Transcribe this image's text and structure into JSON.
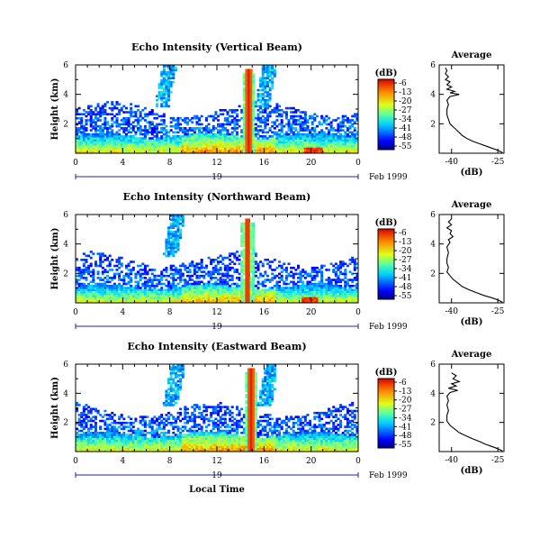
{
  "chart_data": [
    {
      "type": "heatmap",
      "title": "Echo Intensity (Vertical Beam)",
      "ylabel": "Height (km)",
      "xlabel": "",
      "x_ticks": [
        "0",
        "4",
        "8",
        "12",
        "16",
        "20",
        "0"
      ],
      "xlim": [
        0,
        24
      ],
      "y_ticks": [
        "6",
        "4",
        "2"
      ],
      "ylim": [
        0,
        6
      ],
      "date_label": "19",
      "date_suffix": "Feb 1999",
      "colorbar": {
        "unit": "(dB)",
        "ticks": [
          "-6",
          "-13",
          "-20",
          "-27",
          "-34",
          "-41",
          "-48",
          "-55"
        ],
        "range": [
          -55,
          -6
        ]
      },
      "features": {
        "surface_top_km": 1.2,
        "upper_layer_km": [
          1.8,
          3.0
        ],
        "plume_hour": 14.7,
        "aloft_echo_hours": [
          [
            6.5,
            8.5
          ],
          [
            15,
            17
          ]
        ],
        "aloft_echo_top_km": 6.0,
        "hot_hour": 20.2
      },
      "average": {
        "title": "Average",
        "xlabel": "(dB)",
        "x_ticks": [
          "-40",
          "-25"
        ],
        "xlim": [
          -44,
          -23
        ],
        "y_ticks": [
          "6",
          "4",
          "2"
        ],
        "ylim": [
          0,
          6
        ],
        "profile": [
          [
            -23.5,
            0.05
          ],
          [
            -25,
            0.2
          ],
          [
            -27,
            0.35
          ],
          [
            -29,
            0.5
          ],
          [
            -31,
            0.65
          ],
          [
            -33,
            0.8
          ],
          [
            -35,
            1.0
          ],
          [
            -36.5,
            1.2
          ],
          [
            -37.5,
            1.4
          ],
          [
            -38.5,
            1.6
          ],
          [
            -39.5,
            1.8
          ],
          [
            -40.5,
            2.0
          ],
          [
            -41,
            2.3
          ],
          [
            -41.5,
            2.6
          ],
          [
            -41.5,
            3.0
          ],
          [
            -41,
            3.3
          ],
          [
            -41.5,
            3.6
          ],
          [
            -40.5,
            3.85
          ],
          [
            -37.5,
            4.0
          ],
          [
            -40.5,
            4.1
          ],
          [
            -39,
            4.2
          ],
          [
            -41.5,
            4.35
          ],
          [
            -40,
            4.5
          ],
          [
            -41.5,
            4.65
          ],
          [
            -40.5,
            4.85
          ],
          [
            -42,
            5.0
          ],
          [
            -41,
            5.2
          ],
          [
            -42,
            5.4
          ],
          [
            -41.5,
            5.6
          ],
          [
            -42,
            5.8
          ]
        ]
      }
    },
    {
      "type": "heatmap",
      "title": "Echo Intensity (Northward Beam)",
      "ylabel": "Height (km)",
      "xlabel": "",
      "x_ticks": [
        "0",
        "4",
        "8",
        "12",
        "16",
        "20",
        "0"
      ],
      "xlim": [
        0,
        24
      ],
      "y_ticks": [
        "6",
        "4",
        "2"
      ],
      "ylim": [
        0,
        6
      ],
      "date_label": "19",
      "date_suffix": "Feb 1999",
      "colorbar": {
        "unit": "(dB)",
        "ticks": [
          "-6",
          "-13",
          "-20",
          "-27",
          "-34",
          "-41",
          "-48",
          "-55"
        ],
        "range": [
          -55,
          -6
        ]
      },
      "features": {
        "surface_top_km": 1.1,
        "upper_layer_km": [
          1.5,
          3.0
        ],
        "plume_hour": 14.6,
        "aloft_echo_hours": [
          [
            7.2,
            9.2
          ]
        ],
        "aloft_echo_top_km": 6.0,
        "hot_hour": 19.8
      },
      "average": {
        "title": "Average",
        "xlabel": "(dB)",
        "x_ticks": [
          "-40",
          "-25"
        ],
        "xlim": [
          -44,
          -23
        ],
        "y_ticks": [
          "6",
          "4",
          "2"
        ],
        "ylim": [
          0,
          6
        ],
        "profile": [
          [
            -23.5,
            0.05
          ],
          [
            -25,
            0.2
          ],
          [
            -27,
            0.35
          ],
          [
            -29.5,
            0.5
          ],
          [
            -32,
            0.7
          ],
          [
            -34.5,
            0.9
          ],
          [
            -36.5,
            1.1
          ],
          [
            -38,
            1.35
          ],
          [
            -39.5,
            1.6
          ],
          [
            -40.5,
            1.85
          ],
          [
            -41.5,
            2.1
          ],
          [
            -41,
            2.4
          ],
          [
            -41.5,
            2.7
          ],
          [
            -41.5,
            3.0
          ],
          [
            -41,
            3.4
          ],
          [
            -41.5,
            3.8
          ],
          [
            -40.5,
            4.1
          ],
          [
            -41,
            4.3
          ],
          [
            -39.5,
            4.5
          ],
          [
            -40.5,
            4.7
          ],
          [
            -40,
            4.9
          ],
          [
            -41.5,
            5.1
          ],
          [
            -40,
            5.3
          ],
          [
            -41,
            5.5
          ],
          [
            -40,
            5.7
          ]
        ]
      }
    },
    {
      "type": "heatmap",
      "title": "Echo Intensity (Eastward Beam)",
      "ylabel": "Height (km)",
      "xlabel": "Local Time",
      "x_ticks": [
        "0",
        "4",
        "8",
        "12",
        "16",
        "20",
        "0"
      ],
      "xlim": [
        0,
        24
      ],
      "y_ticks": [
        "6",
        "4",
        "2"
      ],
      "ylim": [
        0,
        6
      ],
      "date_label": "19",
      "date_suffix": "Feb 1999",
      "colorbar": {
        "unit": "(dB)",
        "ticks": [
          "-6",
          "-13",
          "-20",
          "-27",
          "-34",
          "-41",
          "-48",
          "-55"
        ],
        "range": [
          -55,
          -6
        ]
      },
      "features": {
        "surface_top_km": 1.2,
        "upper_layer_km": [
          1.6,
          2.9
        ],
        "plume_hour": 14.9,
        "aloft_echo_hours": [
          [
            7.3,
            9.2
          ],
          [
            15.5,
            17
          ]
        ],
        "aloft_echo_top_km": 6.0,
        "hot_hour": -1
      },
      "average": {
        "title": "Average",
        "xlabel": "(dB)",
        "x_ticks": [
          "-40",
          "-25"
        ],
        "xlim": [
          -44,
          -23
        ],
        "y_ticks": [
          "6",
          "4",
          "2"
        ],
        "ylim": [
          0,
          6
        ],
        "profile": [
          [
            -23.5,
            0.05
          ],
          [
            -25,
            0.2
          ],
          [
            -27,
            0.35
          ],
          [
            -29,
            0.5
          ],
          [
            -31,
            0.7
          ],
          [
            -33.5,
            0.9
          ],
          [
            -35.5,
            1.1
          ],
          [
            -37.5,
            1.3
          ],
          [
            -39,
            1.55
          ],
          [
            -40.5,
            1.8
          ],
          [
            -41.5,
            2.1
          ],
          [
            -41.5,
            2.5
          ],
          [
            -41,
            2.8
          ],
          [
            -41.5,
            3.2
          ],
          [
            -41,
            3.5
          ],
          [
            -41.5,
            3.8
          ],
          [
            -40.5,
            4.05
          ],
          [
            -38,
            4.2
          ],
          [
            -41,
            4.35
          ],
          [
            -38.5,
            4.5
          ],
          [
            -40,
            4.65
          ],
          [
            -37.5,
            4.8
          ],
          [
            -39.5,
            5.0
          ],
          [
            -38.5,
            5.2
          ],
          [
            -40,
            5.4
          ]
        ]
      }
    }
  ]
}
